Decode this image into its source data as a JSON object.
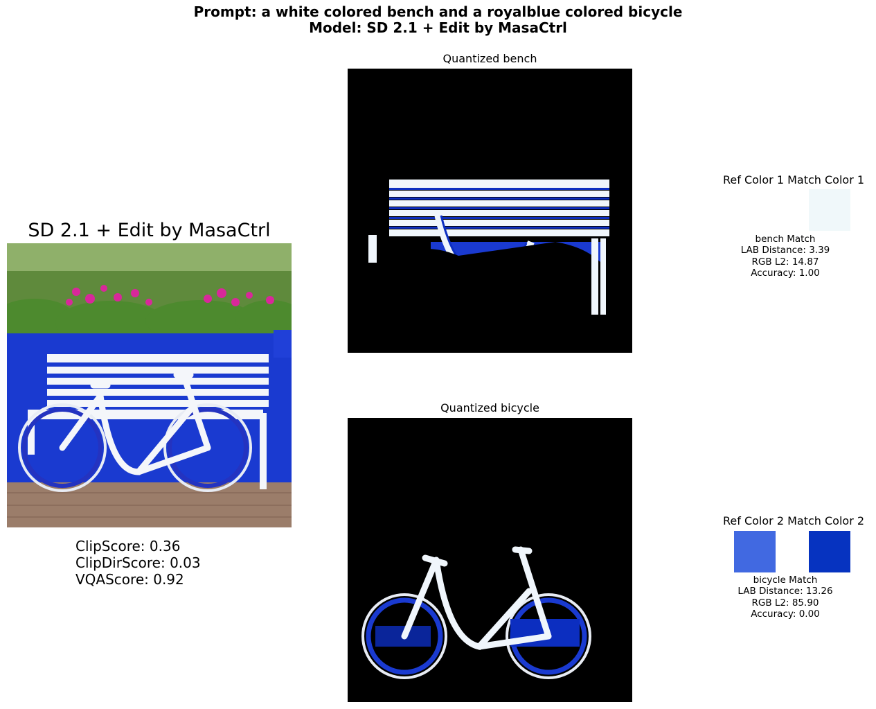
{
  "suptitle": {
    "line1": "Prompt: a white colored bench and a royalblue colored bicycle",
    "line2": "Model: SD 2.1 + Edit by MasaCtrl"
  },
  "left": {
    "title": "SD 2.1 + Edit by MasaCtrl",
    "scores": {
      "clip": "ClipScore: 0.36",
      "clipdir": "ClipDirScore: 0.03",
      "vqa": "VQAScore: 0.92"
    }
  },
  "panels": {
    "bench_title": "Quantized bench",
    "bicycle_title": "Quantized bicycle"
  },
  "color_match": [
    {
      "title": "Ref Color 1 Match Color 1",
      "ref_color": "",
      "match_color": "#f0f8fa",
      "label": "bench Match",
      "lab": "LAB Distance: 3.39",
      "rgb": "RGB L2: 14.87",
      "accuracy": "Accuracy: 1.00"
    },
    {
      "title": "Ref Color 2 Match Color 2",
      "ref_color": "#4169e1",
      "match_color": "#0633c0",
      "label": "bicycle Match",
      "lab": "LAB Distance: 13.26",
      "rgb": "RGB L2: 85.90",
      "accuracy": "Accuracy: 0.00"
    }
  ]
}
